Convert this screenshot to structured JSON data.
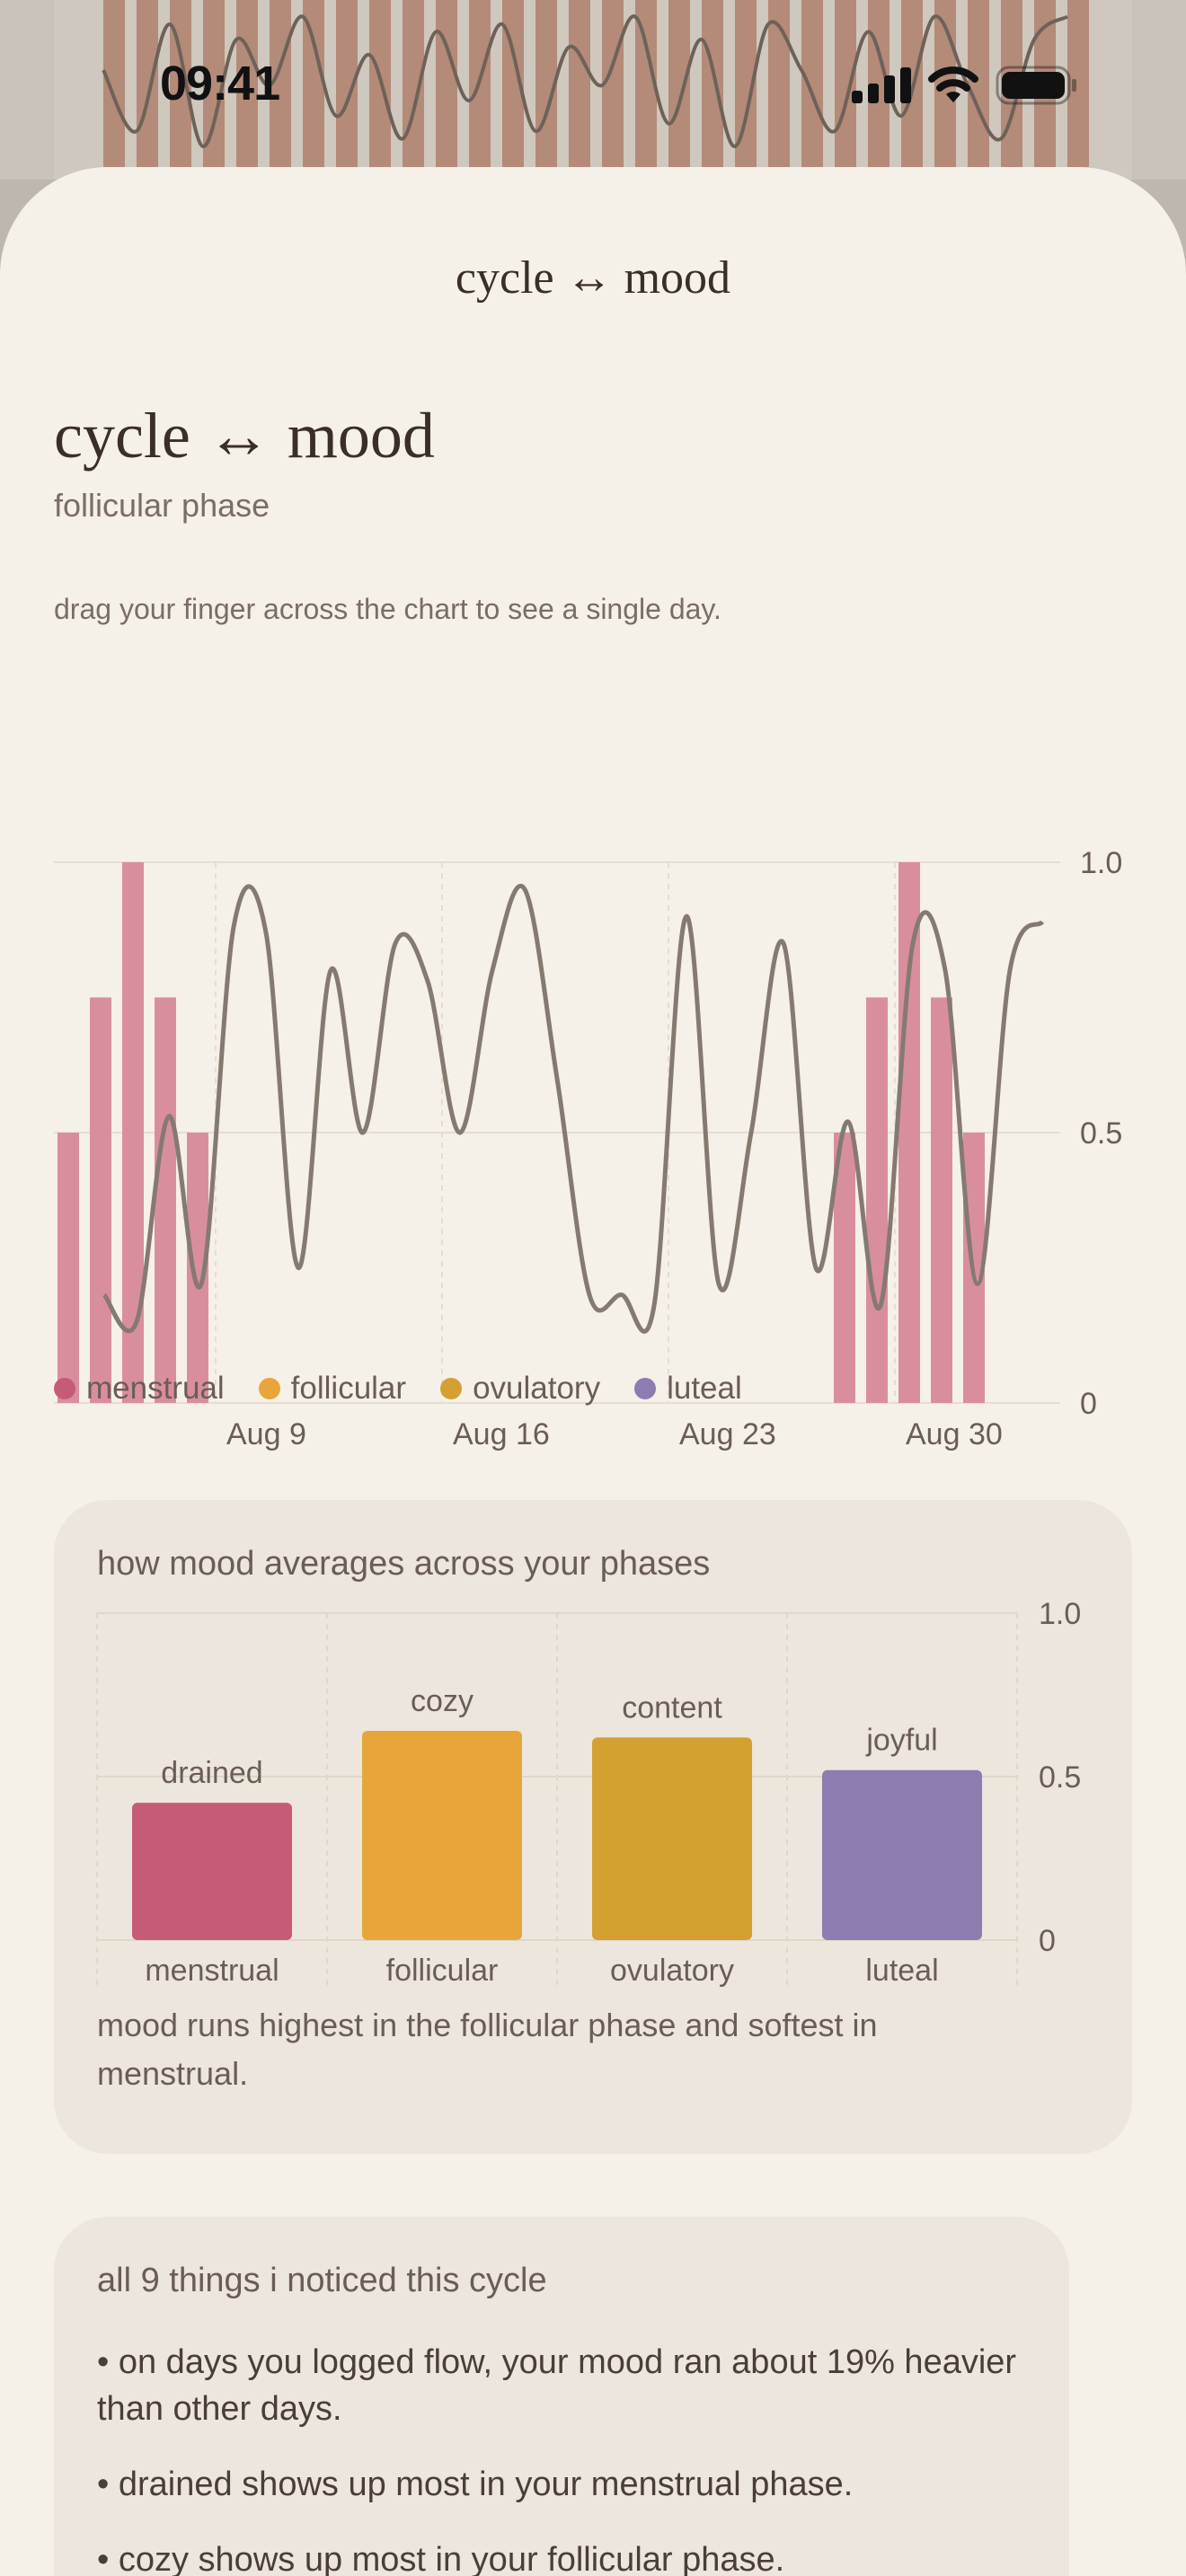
{
  "status_bar": {
    "time": "09:41"
  },
  "header": {
    "title": "cycle ↔ mood"
  },
  "page": {
    "title": "cycle ↔ mood",
    "subtitle": "follicular phase",
    "hint": "drag your finger across the chart to see a single day."
  },
  "colors": {
    "menstrual": "#d98e9e",
    "menstrual_bar": "#c65b78",
    "follicular": "#e8a63a",
    "ovulatory": "#d4a032",
    "luteal": "#8c7cb0",
    "mood_line": "#857a70"
  },
  "chart_data": [
    {
      "type": "bar",
      "title": "",
      "xlabel": "",
      "ylabel": "",
      "ylim": [
        0,
        1
      ],
      "y_ticks": [
        "1.0",
        "0.5",
        "0"
      ],
      "x_ticks": [
        "Aug 9",
        "Aug 16",
        "Aug 23",
        "Aug 30"
      ],
      "grid": true,
      "series": [
        {
          "name": "menstrual",
          "type": "bar",
          "x": [
            1,
            2,
            3,
            4,
            5,
            25,
            26,
            27,
            28,
            29
          ],
          "values": [
            0.5,
            0.75,
            1.0,
            0.75,
            0.5,
            0.5,
            0.75,
            1.0,
            0.75,
            0.5
          ]
        },
        {
          "type": "line",
          "x": [
            2,
            3,
            4,
            5,
            6,
            7,
            8,
            9,
            10,
            11,
            12,
            13,
            14,
            15,
            16,
            17,
            18,
            19,
            20,
            21,
            22,
            23,
            24,
            25,
            26,
            27,
            28,
            29,
            30,
            31
          ],
          "values": [
            0.2,
            0.15,
            0.53,
            0.22,
            0.88,
            0.87,
            0.25,
            0.8,
            0.5,
            0.85,
            0.78,
            0.5,
            0.8,
            0.95,
            0.6,
            0.2,
            0.2,
            0.18,
            0.9,
            0.22,
            0.5,
            0.85,
            0.25,
            0.52,
            0.18,
            0.85,
            0.8,
            0.22,
            0.8,
            0.89
          ]
        }
      ]
    },
    {
      "type": "bar",
      "title": "how mood averages across your phases",
      "categories": [
        "menstrual",
        "follicular",
        "ovulatory",
        "luteal"
      ],
      "values": [
        0.42,
        0.64,
        0.62,
        0.52
      ],
      "bar_labels": [
        "drained",
        "cozy",
        "content",
        "joyful"
      ],
      "ylim": [
        0,
        1
      ],
      "y_ticks": [
        "1.0",
        "0.5",
        "0"
      ],
      "grid": true
    }
  ],
  "legend": [
    {
      "label": "menstrual",
      "color": "#c65b78"
    },
    {
      "label": "follicular",
      "color": "#e8a63a"
    },
    {
      "label": "ovulatory",
      "color": "#d4a032"
    },
    {
      "label": "luteal",
      "color": "#8c7cb0"
    }
  ],
  "phase_card": {
    "summary": "mood runs highest in the follicular phase and softest in menstrual."
  },
  "notices_card": {
    "title": "all 9 things i noticed this cycle",
    "items": [
      "• on days you logged flow, your mood ran about 19% heavier than other days.",
      "• drained shows up most in your menstrual phase.",
      "• cozy shows up most in your follicular phase."
    ]
  }
}
